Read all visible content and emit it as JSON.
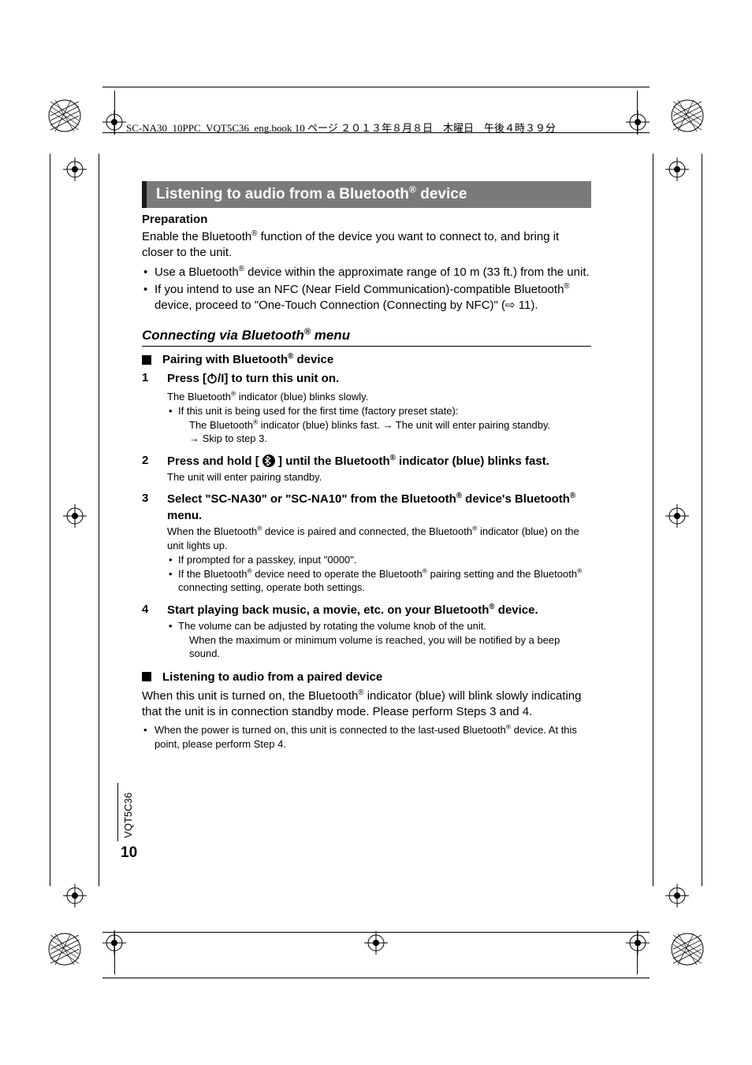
{
  "header": {
    "text": "SC-NA30_10PPC_VQT5C36_eng.book  10 ページ  ２０１３年８月８日　木曜日　午後４時３９分"
  },
  "title": "Listening to audio from a Bluetooth® device",
  "preparation": {
    "heading": "Preparation",
    "text": "Enable the Bluetooth® function of the device you want to connect to, and bring it closer to the unit.",
    "bullets": [
      "Use a Bluetooth® device within the approximate range of 10 m (33 ft.) from the unit.",
      "If you intend to use an NFC (Near Field Communication)-compatible Bluetooth® device, proceed to \"One-Touch Connection (Connecting by NFC)\" (⇨ 11)."
    ]
  },
  "section": {
    "heading": "Connecting via Bluetooth® menu",
    "sub1": "Pairing with Bluetooth® device",
    "sub2": "Listening to audio from a paired device"
  },
  "steps": {
    "s1": {
      "num": "1",
      "title_a": "Press [",
      "title_b": "/I] to turn this unit on.",
      "text": "The Bluetooth® indicator (blue) blinks slowly.",
      "bullet": "If this unit is being used for the first time (factory preset state):",
      "sub_a": "The Bluetooth® indicator (blue) blinks fast. → The unit will enter pairing standby.",
      "sub_b": "→ Skip to step 3."
    },
    "s2": {
      "num": "2",
      "title_a": "Press and hold [ ",
      "title_b": " ] until the Bluetooth® indicator (blue) blinks fast.",
      "text": "The unit will enter pairing standby."
    },
    "s3": {
      "num": "3",
      "title": "Select \"SC-NA30\" or \"SC-NA10\" from the Bluetooth® device's Bluetooth® menu.",
      "text": "When the Bluetooth® device is paired and connected, the Bluetooth® indicator (blue) on the unit lights up.",
      "bullets": [
        "If prompted for a passkey, input \"0000\".",
        "If the Bluetooth® device need to operate the Bluetooth® pairing setting and the Bluetooth® connecting setting, operate both settings."
      ]
    },
    "s4": {
      "num": "4",
      "title": "Start playing back music, a movie, etc. on your Bluetooth® device.",
      "bullet": "The volume can be adjusted by rotating the volume knob of the unit.",
      "sub": "When the maximum or minimum volume is reached, you will be notified by a beep sound."
    }
  },
  "paired": {
    "text": "When this unit is turned on, the Bluetooth® indicator (blue) will blink slowly indicating that the unit is in connection standby mode. Please perform Steps 3 and 4.",
    "bullet": "When the power is turned on, this unit is connected to the last-used Bluetooth® device. At this point, please perform Step 4."
  },
  "footer": {
    "page_num": "10",
    "doc_code": "VQT5C36"
  },
  "colors": {
    "title_bg": "#7a7a7a",
    "title_stripe": "#1a1a1a",
    "text": "#000000",
    "bg": "#ffffff"
  }
}
